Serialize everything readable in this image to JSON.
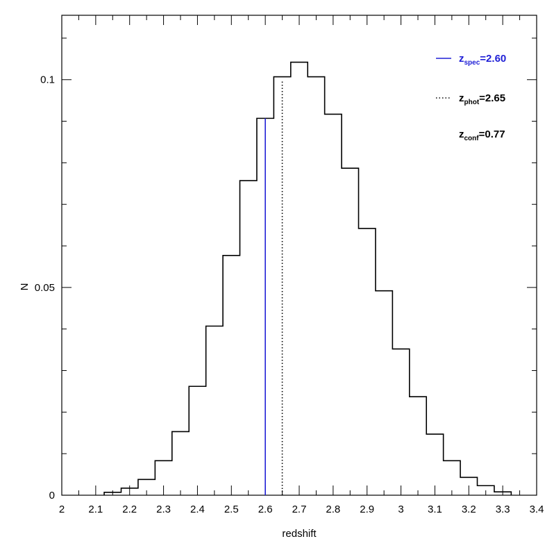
{
  "chart_data": {
    "type": "histogram",
    "xlabel": "redshift",
    "ylabel": "N",
    "xlim": [
      2.0,
      3.4
    ],
    "ylim": [
      0,
      0.1155
    ],
    "x_ticks": [
      "2",
      "2.1",
      "2.2",
      "2.3",
      "2.4",
      "2.5",
      "2.6",
      "2.7",
      "2.8",
      "2.9",
      "3",
      "3.1",
      "3.2",
      "3.3",
      "3.4"
    ],
    "y_ticks": [
      "0",
      "0.05",
      "0.1"
    ],
    "bin_edges": [
      2.125,
      2.175,
      2.225,
      2.275,
      2.325,
      2.375,
      2.425,
      2.475,
      2.525,
      2.575,
      2.625,
      2.675,
      2.725,
      2.775,
      2.825,
      2.875,
      2.925,
      2.975,
      3.025,
      3.075,
      3.125,
      3.175,
      3.225,
      3.275,
      3.325
    ],
    "values": [
      0.0007,
      0.0017,
      0.0038,
      0.0083,
      0.0153,
      0.0262,
      0.0407,
      0.0577,
      0.0757,
      0.0907,
      0.1007,
      0.1042,
      0.1007,
      0.0917,
      0.0787,
      0.0642,
      0.0492,
      0.0352,
      0.0237,
      0.0147,
      0.0083,
      0.0043,
      0.0023,
      0.0008
    ],
    "lines": [
      {
        "label_var": "z",
        "label_sub": "spec",
        "label_value": "=2.60",
        "x": 2.6,
        "ytop": 0.0907,
        "style": "solid",
        "color": "#1f1fd6"
      },
      {
        "label_var": "z",
        "label_sub": "phot",
        "label_value": "=2.65",
        "x": 2.65,
        "ytop": 0.0997,
        "style": "dotted",
        "color": "#000000"
      }
    ],
    "annotation": {
      "label_var": "z",
      "label_sub": "conf",
      "label_value": "=0.77"
    },
    "grid": false,
    "legend_position": "top-right"
  }
}
